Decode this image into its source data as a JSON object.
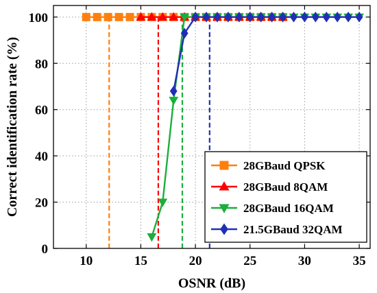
{
  "chart_data": {
    "type": "line",
    "title": "",
    "xlabel": "OSNR (dB)",
    "ylabel": "Correct identification rate (%)",
    "xlim": [
      7,
      36
    ],
    "ylim": [
      0,
      105
    ],
    "xticks": [
      10,
      15,
      20,
      25,
      30,
      35
    ],
    "yticks": [
      0,
      20,
      40,
      60,
      80,
      100
    ],
    "grid": true,
    "grid_style": "dotted",
    "legend_position": "bottom-right",
    "series": [
      {
        "name": "28GBaud QPSK",
        "color": "#ff7f0e",
        "marker": "square",
        "x": [
          10,
          11,
          12,
          13,
          14,
          15,
          16,
          17,
          18,
          19,
          20,
          21,
          22,
          23,
          24,
          25,
          26,
          27,
          28
        ],
        "y": [
          100,
          100,
          100,
          100,
          100,
          100,
          100,
          100,
          100,
          100,
          100,
          100,
          100,
          100,
          100,
          100,
          100,
          100,
          100
        ],
        "threshold_osnr": 12.1
      },
      {
        "name": "28GBaud 8QAM",
        "color": "#ff0000",
        "marker": "triangle-up",
        "x": [
          15,
          16,
          17,
          18,
          19,
          20,
          21,
          22,
          23,
          24,
          25,
          26,
          27,
          28
        ],
        "y": [
          100,
          100,
          100,
          100,
          100,
          100,
          100,
          100,
          100,
          100,
          100,
          100,
          100,
          100
        ],
        "threshold_osnr": 16.6
      },
      {
        "name": "28GBaud 16QAM",
        "color": "#1aae3b",
        "marker": "triangle-down",
        "x": [
          16,
          17,
          18,
          19,
          20,
          21,
          22,
          23,
          24,
          25,
          26,
          27,
          28,
          29,
          30,
          31,
          32,
          33,
          34,
          35
        ],
        "y": [
          5,
          20,
          64,
          100,
          100,
          100,
          100,
          100,
          100,
          100,
          100,
          100,
          100,
          100,
          100,
          100,
          100,
          100,
          100,
          100
        ],
        "threshold_osnr": 18.8
      },
      {
        "name": "21.5GBaud 32QAM",
        "color": "#1f2fb5",
        "marker": "diamond",
        "x": [
          18,
          19,
          20,
          21,
          22,
          23,
          24,
          25,
          26,
          27,
          28,
          29,
          30,
          31,
          32,
          33,
          34,
          35
        ],
        "y": [
          68,
          93,
          100,
          100,
          100,
          100,
          100,
          100,
          100,
          100,
          100,
          100,
          100,
          100,
          100,
          100,
          100,
          100
        ],
        "threshold_osnr": 21.3
      }
    ]
  }
}
